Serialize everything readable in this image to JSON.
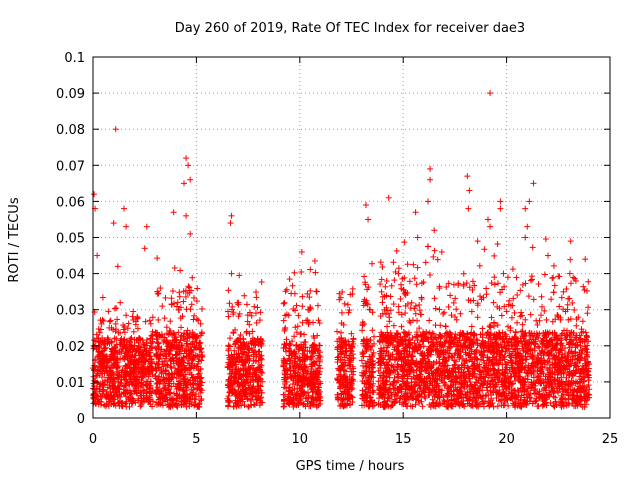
{
  "chart_data": {
    "type": "scatter",
    "title": "Day 260 of 2019, Rate Of TEC Index for receiver dae3",
    "xlabel": "GPS time / hours",
    "ylabel": "ROTI / TECUs",
    "xlim": [
      0,
      25
    ],
    "ylim": [
      0,
      0.1
    ],
    "x_ticks": [
      "0",
      "5",
      "10",
      "15",
      "20",
      "25"
    ],
    "y_ticks": [
      "0",
      "0.01",
      "0.02",
      "0.03",
      "0.04",
      "0.05",
      "0.06",
      "0.07",
      "0.08",
      "0.09",
      "0.1"
    ],
    "grid": true,
    "marker": "+",
    "color": "#ff0000",
    "clusters": [
      {
        "x_start": 0.0,
        "x_end": 2.9,
        "y_median": 0.012,
        "y_max": 0.035
      },
      {
        "x_start": 3.0,
        "x_end": 5.3,
        "y_median": 0.013,
        "y_max": 0.045
      },
      {
        "x_start": 6.5,
        "x_end": 8.2,
        "y_median": 0.012,
        "y_max": 0.04
      },
      {
        "x_start": 9.2,
        "x_end": 11.0,
        "y_median": 0.011,
        "y_max": 0.044
      },
      {
        "x_start": 11.8,
        "x_end": 12.6,
        "y_median": 0.012,
        "y_max": 0.043
      },
      {
        "x_start": 13.0,
        "x_end": 13.6,
        "y_median": 0.012,
        "y_max": 0.05
      },
      {
        "x_start": 13.8,
        "x_end": 24.0,
        "y_median": 0.013,
        "y_max": 0.05
      }
    ],
    "outliers": [
      {
        "x": 0.05,
        "y": 0.062
      },
      {
        "x": 0.1,
        "y": 0.058
      },
      {
        "x": 0.2,
        "y": 0.045
      },
      {
        "x": 1.1,
        "y": 0.08
      },
      {
        "x": 1.0,
        "y": 0.054
      },
      {
        "x": 1.5,
        "y": 0.058
      },
      {
        "x": 1.6,
        "y": 0.053
      },
      {
        "x": 2.6,
        "y": 0.053
      },
      {
        "x": 2.5,
        "y": 0.047
      },
      {
        "x": 1.2,
        "y": 0.042
      },
      {
        "x": 4.5,
        "y": 0.072
      },
      {
        "x": 4.6,
        "y": 0.07
      },
      {
        "x": 4.4,
        "y": 0.065
      },
      {
        "x": 4.7,
        "y": 0.066
      },
      {
        "x": 3.9,
        "y": 0.057
      },
      {
        "x": 4.5,
        "y": 0.056
      },
      {
        "x": 4.7,
        "y": 0.051
      },
      {
        "x": 6.7,
        "y": 0.056
      },
      {
        "x": 6.65,
        "y": 0.054
      },
      {
        "x": 6.7,
        "y": 0.04
      },
      {
        "x": 10.1,
        "y": 0.046
      },
      {
        "x": 13.2,
        "y": 0.059
      },
      {
        "x": 13.3,
        "y": 0.055
      },
      {
        "x": 14.3,
        "y": 0.061
      },
      {
        "x": 15.6,
        "y": 0.057
      },
      {
        "x": 16.3,
        "y": 0.069
      },
      {
        "x": 16.3,
        "y": 0.066
      },
      {
        "x": 16.2,
        "y": 0.06
      },
      {
        "x": 15.7,
        "y": 0.05
      },
      {
        "x": 16.5,
        "y": 0.052
      },
      {
        "x": 18.1,
        "y": 0.067
      },
      {
        "x": 18.2,
        "y": 0.063
      },
      {
        "x": 18.15,
        "y": 0.058
      },
      {
        "x": 18.6,
        "y": 0.049
      },
      {
        "x": 19.2,
        "y": 0.09
      },
      {
        "x": 19.7,
        "y": 0.06
      },
      {
        "x": 19.7,
        "y": 0.058
      },
      {
        "x": 19.1,
        "y": 0.055
      },
      {
        "x": 19.2,
        "y": 0.053
      },
      {
        "x": 21.3,
        "y": 0.065
      },
      {
        "x": 21.1,
        "y": 0.06
      },
      {
        "x": 20.9,
        "y": 0.058
      },
      {
        "x": 21.0,
        "y": 0.053
      },
      {
        "x": 20.9,
        "y": 0.05
      },
      {
        "x": 22.0,
        "y": 0.045
      },
      {
        "x": 23.1,
        "y": 0.049
      },
      {
        "x": 23.8,
        "y": 0.044
      }
    ]
  }
}
